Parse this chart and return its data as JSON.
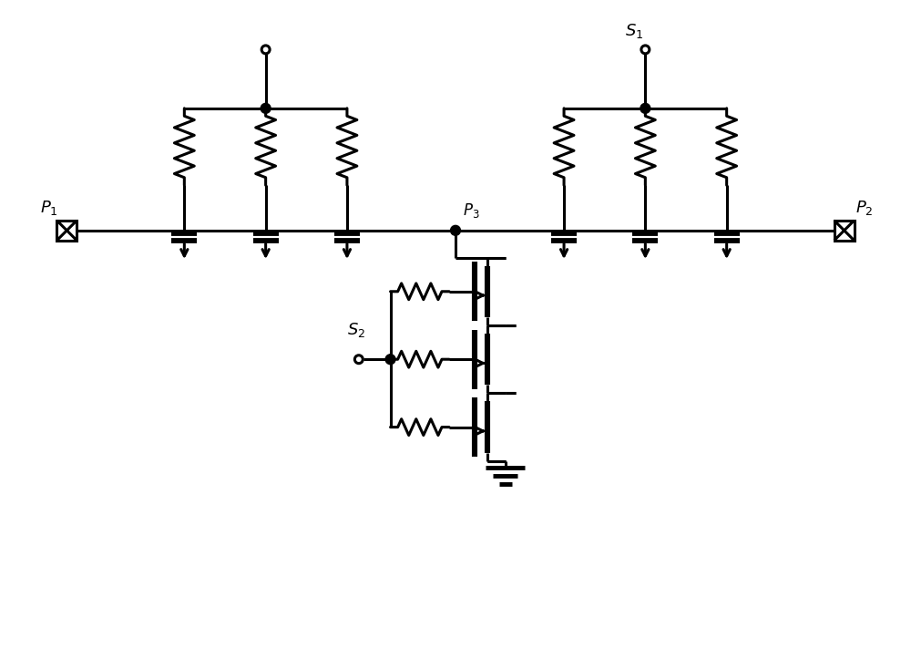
{
  "bg_color": "#ffffff",
  "line_color": "#000000",
  "lw": 2.2,
  "figsize": [
    10.0,
    7.12
  ],
  "dpi": 100
}
